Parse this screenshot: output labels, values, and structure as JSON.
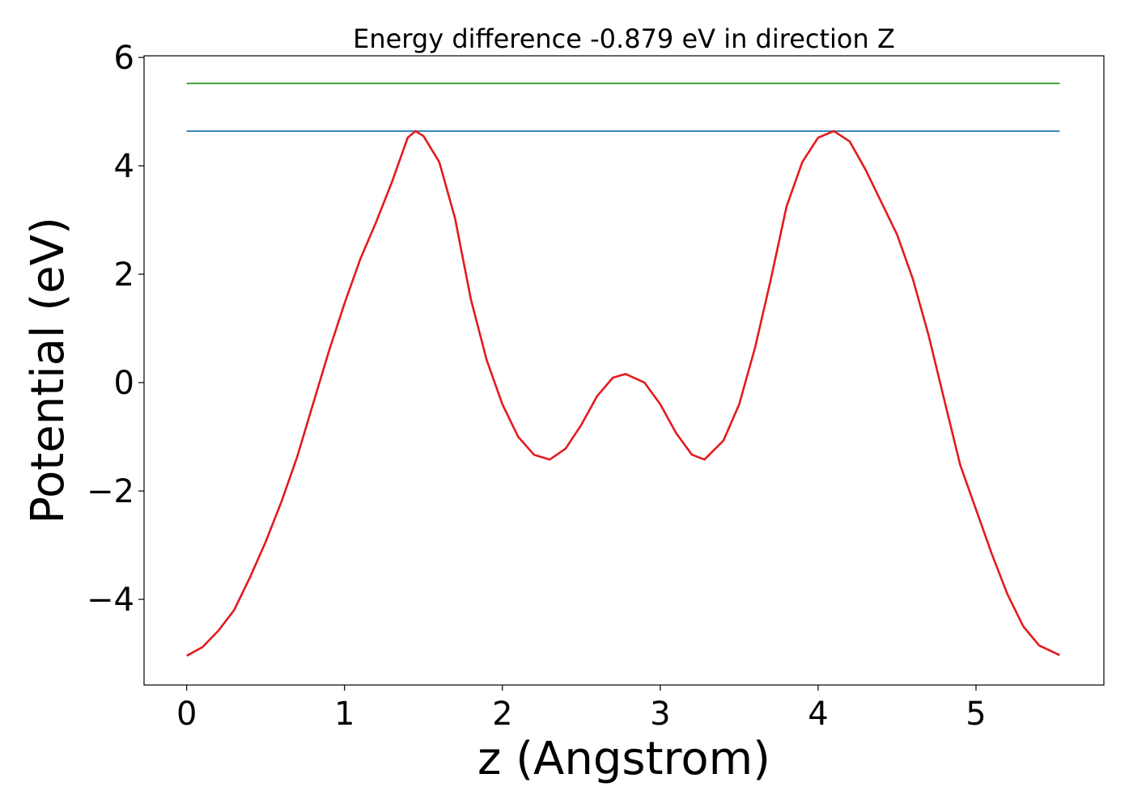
{
  "chart_data": {
    "type": "line",
    "title": "Energy difference -0.879 eV in direction Z",
    "xlabel": "z (Angstrom)",
    "ylabel": "Potential (eV)",
    "xlim": [
      -0.27,
      5.81
    ],
    "ylim": [
      -5.58,
      6.03
    ],
    "xticks": [
      0,
      1,
      2,
      3,
      4,
      5
    ],
    "xtick_labels": [
      "0",
      "1",
      "2",
      "3",
      "4",
      "5"
    ],
    "yticks": [
      -4,
      -2,
      0,
      2,
      4,
      6
    ],
    "ytick_labels": [
      "−4",
      "−2",
      "0",
      "2",
      "4",
      "6"
    ],
    "grid": false,
    "series": [
      {
        "name": "reference-level-green",
        "color": "#2ca02c",
        "x": [
          0,
          5.53
        ],
        "y": [
          5.52,
          5.52
        ]
      },
      {
        "name": "reference-level-blue",
        "color": "#1f77b4",
        "x": [
          0,
          5.53
        ],
        "y": [
          4.64,
          4.64
        ]
      },
      {
        "name": "potential",
        "color": "#e41a1c",
        "x": [
          0,
          0.1,
          0.2,
          0.3,
          0.4,
          0.5,
          0.6,
          0.7,
          0.8,
          0.9,
          1.0,
          1.1,
          1.2,
          1.3,
          1.4,
          1.45,
          1.5,
          1.6,
          1.7,
          1.8,
          1.9,
          2.0,
          2.1,
          2.2,
          2.3,
          2.4,
          2.5,
          2.6,
          2.7,
          2.78,
          2.9,
          3.0,
          3.1,
          3.2,
          3.28,
          3.4,
          3.5,
          3.6,
          3.7,
          3.8,
          3.9,
          4.0,
          4.1,
          4.2,
          4.3,
          4.4,
          4.5,
          4.6,
          4.7,
          4.8,
          4.9,
          5.0,
          5.1,
          5.2,
          5.3,
          5.4,
          5.53
        ],
        "y": [
          -5.04,
          -4.88,
          -4.58,
          -4.2,
          -3.6,
          -2.94,
          -2.2,
          -1.37,
          -0.4,
          0.57,
          1.46,
          2.28,
          2.96,
          3.7,
          4.52,
          4.64,
          4.55,
          4.07,
          3.03,
          1.54,
          0.42,
          -0.4,
          -1.0,
          -1.33,
          -1.42,
          -1.22,
          -0.78,
          -0.25,
          0.09,
          0.16,
          0.0,
          -0.4,
          -0.93,
          -1.33,
          -1.42,
          -1.07,
          -0.4,
          0.64,
          1.9,
          3.25,
          4.07,
          4.52,
          4.64,
          4.45,
          3.93,
          3.33,
          2.73,
          1.91,
          0.87,
          -0.33,
          -1.52,
          -2.34,
          -3.16,
          -3.91,
          -4.5,
          -4.85,
          -5.03
        ]
      }
    ]
  }
}
